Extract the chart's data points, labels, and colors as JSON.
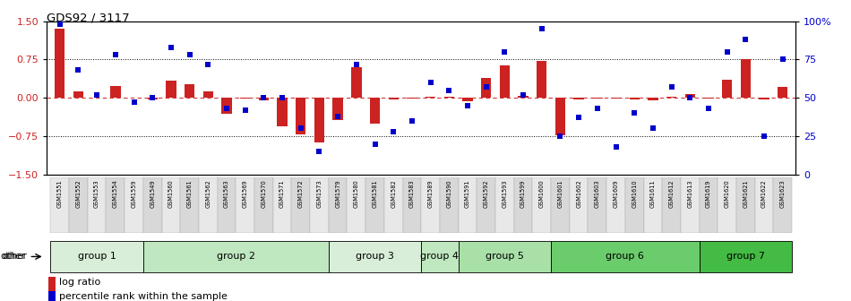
{
  "title": "GDS92 / 3117",
  "samples": [
    "GSM1551",
    "GSM1552",
    "GSM1553",
    "GSM1554",
    "GSM1559",
    "GSM1549",
    "GSM1560",
    "GSM1561",
    "GSM1562",
    "GSM1563",
    "GSM1569",
    "GSM1570",
    "GSM1571",
    "GSM1572",
    "GSM1573",
    "GSM1579",
    "GSM1580",
    "GSM1581",
    "GSM1582",
    "GSM1583",
    "GSM1589",
    "GSM1590",
    "GSM1591",
    "GSM1592",
    "GSM1593",
    "GSM1599",
    "GSM1600",
    "GSM1601",
    "GSM1602",
    "GSM1603",
    "GSM1609",
    "GSM1610",
    "GSM1611",
    "GSM1612",
    "GSM1613",
    "GSM1619",
    "GSM1620",
    "GSM1621",
    "GSM1622",
    "GSM1623"
  ],
  "log_ratio": [
    1.35,
    0.13,
    0.0,
    0.23,
    0.0,
    -0.03,
    0.33,
    0.27,
    0.13,
    -0.32,
    -0.02,
    -0.05,
    -0.55,
    -0.72,
    -0.88,
    -0.43,
    0.6,
    -0.5,
    -0.03,
    -0.02,
    0.02,
    0.02,
    -0.07,
    0.38,
    0.63,
    0.04,
    0.72,
    -0.73,
    -0.03,
    -0.02,
    -0.02,
    -0.03,
    -0.05,
    0.02,
    0.07,
    -0.02,
    0.35,
    0.75,
    -0.03,
    0.22
  ],
  "percentile_rank": [
    98,
    68,
    52,
    78,
    47,
    50,
    83,
    78,
    72,
    43,
    42,
    50,
    50,
    30,
    15,
    38,
    72,
    20,
    28,
    35,
    60,
    55,
    45,
    57,
    80,
    52,
    95,
    25,
    37,
    43,
    18,
    40,
    30,
    57,
    50,
    43,
    80,
    88,
    25,
    75
  ],
  "groups": [
    {
      "name": "group 1",
      "start": 0,
      "end": 5,
      "color": "#d8eed8"
    },
    {
      "name": "group 2",
      "start": 5,
      "end": 15,
      "color": "#c0e8c0"
    },
    {
      "name": "group 3",
      "start": 15,
      "end": 20,
      "color": "#d8eed8"
    },
    {
      "name": "group 4",
      "start": 20,
      "end": 22,
      "color": "#c0e8c0"
    },
    {
      "name": "group 5",
      "start": 22,
      "end": 27,
      "color": "#a8e0a8"
    },
    {
      "name": "group 6",
      "start": 27,
      "end": 35,
      "color": "#6acc6a"
    },
    {
      "name": "group 7",
      "start": 35,
      "end": 40,
      "color": "#44bb44"
    }
  ],
  "ylim_left": [
    -1.5,
    1.5
  ],
  "ylim_right": [
    0,
    100
  ],
  "yticks_left": [
    -1.5,
    -0.75,
    0,
    0.75,
    1.5
  ],
  "yticks_right": [
    0,
    25,
    50,
    75,
    100
  ],
  "ytick_labels_right": [
    "0",
    "25",
    "50",
    "75",
    "100%"
  ],
  "hlines_dotted": [
    -0.75,
    0.75
  ],
  "hline_zero": 0,
  "bar_color": "#cc2222",
  "dot_color": "#0000cc",
  "bar_width": 0.55,
  "dot_size": 18
}
